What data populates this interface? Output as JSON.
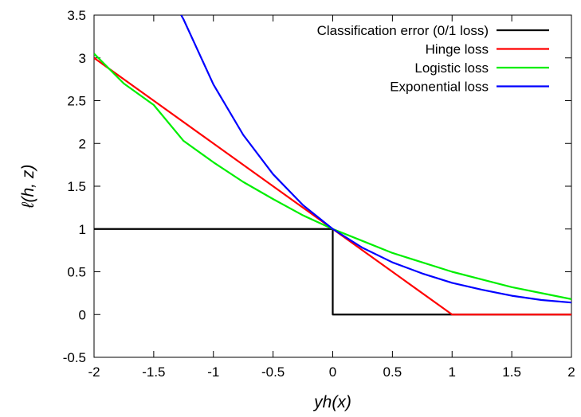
{
  "chart_data": {
    "type": "line",
    "xlabel": "yh(x)",
    "ylabel": "ℓ(h, z)",
    "xlim": [
      -2,
      2
    ],
    "ylim": [
      -0.5,
      3.5
    ],
    "xticks": [
      "-2",
      "-1.5",
      "-1",
      "-0.5",
      "0",
      "0.5",
      "1",
      "1.5",
      "2"
    ],
    "yticks": [
      "-0.5",
      "0",
      "0.5",
      "1",
      "1.5",
      "2",
      "2.5",
      "3",
      "3.5"
    ],
    "grid": false,
    "legend_position": "top-right",
    "series": [
      {
        "name": "Classification error (0/1 loss)",
        "color": "#000000",
        "x": [
          -2,
          0,
          0,
          2
        ],
        "y": [
          1,
          1,
          0,
          0
        ]
      },
      {
        "name": "Hinge loss",
        "color": "#ff0000",
        "x": [
          -2,
          -1.5,
          -1,
          -0.5,
          0,
          0.5,
          1,
          1.5,
          2
        ],
        "y": [
          3,
          2.5,
          2,
          1.5,
          1,
          0.5,
          0,
          0,
          0
        ]
      },
      {
        "name": "Logistic loss",
        "color": "#00ee00",
        "x": [
          -2,
          -1.75,
          -1.5,
          -1.25,
          -1,
          -0.75,
          -0.5,
          -0.25,
          0,
          0.25,
          0.5,
          0.75,
          1,
          1.25,
          1.5,
          1.75,
          2
        ],
        "y": [
          3.05,
          2.7,
          2.45,
          2.03,
          1.78,
          1.55,
          1.35,
          1.16,
          1.0,
          0.86,
          0.72,
          0.61,
          0.5,
          0.41,
          0.32,
          0.25,
          0.18
        ]
      },
      {
        "name": "Exponential loss",
        "color": "#0000ff",
        "x": [
          -1.27,
          -1.25,
          -1,
          -0.75,
          -0.5,
          -0.25,
          0,
          0.25,
          0.5,
          0.75,
          1,
          1.25,
          1.5,
          1.75,
          2
        ],
        "y": [
          3.5,
          3.45,
          2.69,
          2.1,
          1.64,
          1.28,
          1.0,
          0.78,
          0.61,
          0.48,
          0.37,
          0.29,
          0.22,
          0.17,
          0.14
        ]
      }
    ]
  }
}
